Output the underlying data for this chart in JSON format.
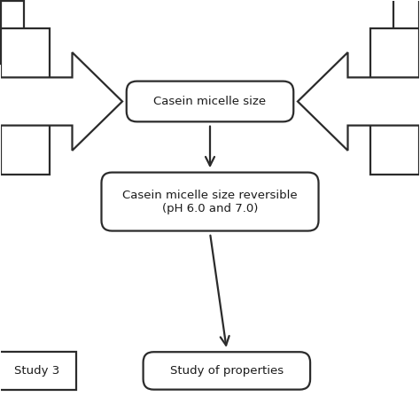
{
  "bg_color": "#ffffff",
  "box1_text": "Casein micelle size",
  "box2_text": "Casein micelle size reversible\n(pH 6.0 and 7.0)",
  "box3_text": "Study of properties",
  "box4_text": "Study 3",
  "line_color": "#2b2b2b",
  "text_color": "#1a1a1a",
  "font_size": 9.5,
  "arrow_lw": 1.6
}
